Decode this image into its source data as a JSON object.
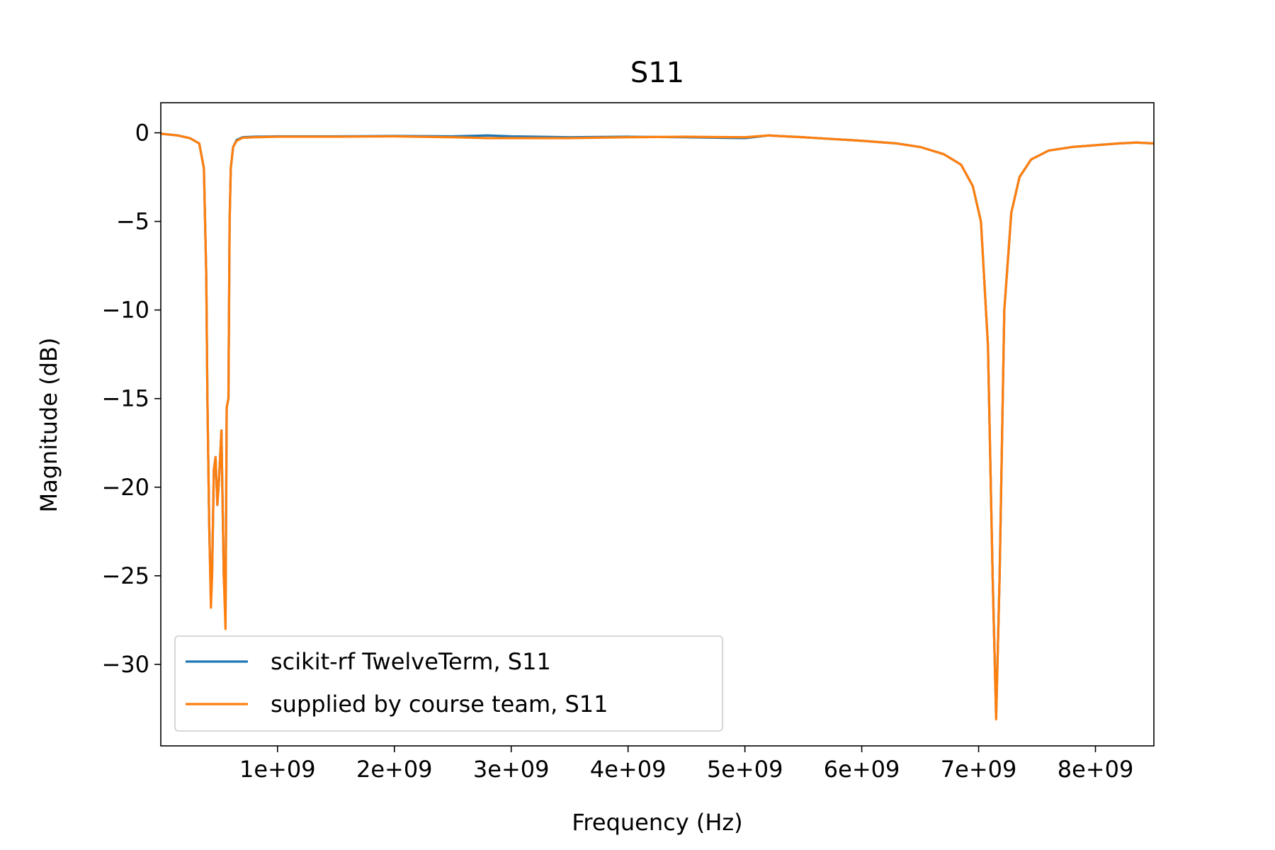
{
  "chart_data": {
    "type": "line",
    "title": "S11",
    "xlabel": "Frequency (Hz)",
    "ylabel": "Magnitude (dB)",
    "xlim": [
      1000000,
      8500000000
    ],
    "ylim": [
      -34.6,
      1.7
    ],
    "x_ticks": [
      1000000000,
      2000000000,
      3000000000,
      4000000000,
      5000000000,
      6000000000,
      7000000000,
      8000000000
    ],
    "x_tick_labels": [
      "1e+09",
      "2e+09",
      "3e+09",
      "4e+09",
      "5e+09",
      "6e+09",
      "7e+09",
      "8e+09"
    ],
    "y_ticks": [
      0,
      -5,
      -10,
      -15,
      -20,
      -25,
      -30
    ],
    "y_tick_labels": [
      "0",
      "−5",
      "−10",
      "−15",
      "−20",
      "−25",
      "−30"
    ],
    "grid": false,
    "legend": {
      "position": "lower-left"
    },
    "series": [
      {
        "name": "scikit-rf TwelveTerm, S11",
        "color": "#1f77b4",
        "x": [
          1000000,
          150000000,
          250000000,
          330000000,
          370000000,
          390000000,
          400000000,
          415000000,
          430000000,
          440000000,
          455000000,
          470000000,
          485000000,
          500000000,
          520000000,
          540000000,
          555000000,
          565000000,
          580000000,
          590000000,
          600000000,
          620000000,
          650000000,
          700000000,
          800000000,
          1000000000,
          1500000000,
          2000000000,
          2500000000,
          2800000000,
          3000000000,
          3500000000,
          4000000000,
          4500000000,
          5000000000,
          5200000000,
          5500000000,
          6000000000,
          6300000000,
          6500000000,
          6700000000,
          6850000000,
          6950000000,
          7020000000,
          7080000000,
          7120000000,
          7150000000,
          7180000000,
          7220000000,
          7280000000,
          7350000000,
          7450000000,
          7600000000,
          7800000000,
          8000000000,
          8200000000,
          8350000000,
          8500000000
        ],
        "y": [
          -0.05,
          -0.15,
          -0.3,
          -0.6,
          -2.0,
          -8.0,
          -15.0,
          -22.0,
          -26.5,
          -25.0,
          -19.0,
          -18.3,
          -21.0,
          -19.5,
          -16.8,
          -25.0,
          -27.2,
          -15.5,
          -15.0,
          -5.0,
          -2.0,
          -0.8,
          -0.4,
          -0.25,
          -0.22,
          -0.2,
          -0.2,
          -0.18,
          -0.2,
          -0.15,
          -0.2,
          -0.25,
          -0.22,
          -0.25,
          -0.3,
          -0.15,
          -0.25,
          -0.45,
          -0.6,
          -0.8,
          -1.2,
          -1.8,
          -3.0,
          -5.0,
          -12.0,
          -25.0,
          -33.0,
          -25.0,
          -10.0,
          -4.5,
          -2.5,
          -1.5,
          -1.0,
          -0.8,
          -0.7,
          -0.6,
          -0.55,
          -0.6
        ]
      },
      {
        "name": "supplied by course team, S11",
        "color": "#ff7f0e",
        "x": [
          1000000,
          150000000,
          250000000,
          330000000,
          370000000,
          390000000,
          400000000,
          415000000,
          430000000,
          440000000,
          455000000,
          470000000,
          485000000,
          500000000,
          520000000,
          540000000,
          555000000,
          565000000,
          580000000,
          590000000,
          600000000,
          620000000,
          650000000,
          700000000,
          800000000,
          1000000000,
          1500000000,
          2000000000,
          2500000000,
          2800000000,
          3000000000,
          3500000000,
          4000000000,
          4500000000,
          5000000000,
          5200000000,
          5500000000,
          6000000000,
          6300000000,
          6500000000,
          6700000000,
          6850000000,
          6950000000,
          7020000000,
          7080000000,
          7120000000,
          7150000000,
          7180000000,
          7220000000,
          7280000000,
          7350000000,
          7450000000,
          7600000000,
          7800000000,
          8000000000,
          8200000000,
          8350000000,
          8500000000
        ],
        "y": [
          -0.05,
          -0.15,
          -0.3,
          -0.6,
          -2.0,
          -8.0,
          -15.0,
          -22.0,
          -26.8,
          -25.0,
          -19.0,
          -18.3,
          -21.0,
          -19.5,
          -16.8,
          -25.0,
          -28.0,
          -15.5,
          -15.0,
          -5.0,
          -2.0,
          -0.8,
          -0.45,
          -0.28,
          -0.25,
          -0.22,
          -0.22,
          -0.2,
          -0.25,
          -0.3,
          -0.3,
          -0.3,
          -0.25,
          -0.22,
          -0.25,
          -0.15,
          -0.25,
          -0.45,
          -0.6,
          -0.8,
          -1.2,
          -1.8,
          -3.0,
          -5.0,
          -12.0,
          -25.0,
          -33.1,
          -25.0,
          -10.0,
          -4.5,
          -2.5,
          -1.5,
          -1.0,
          -0.8,
          -0.7,
          -0.6,
          -0.55,
          -0.6
        ]
      }
    ]
  }
}
